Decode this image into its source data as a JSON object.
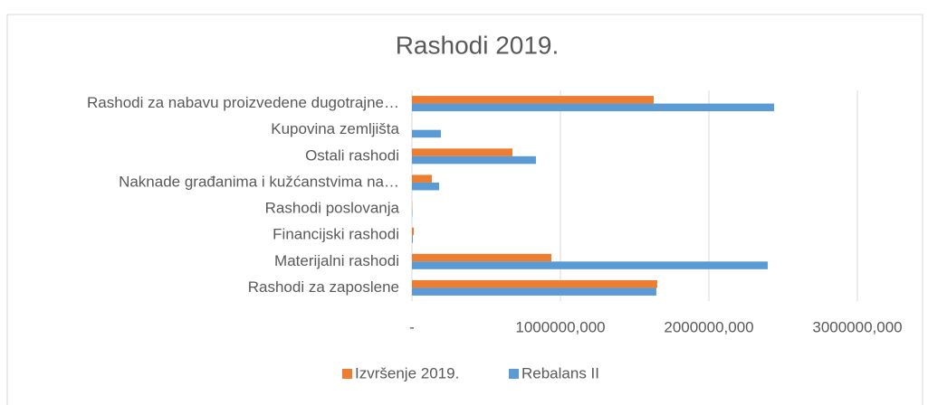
{
  "chart_data": {
    "type": "hbar",
    "title": "Rashodi 2019.",
    "categories": [
      "Rashodi za zaposlene",
      "Materijalni rashodi",
      "Financijski rashodi",
      "Rashodi poslovanja",
      "Naknade građanima i kužćanstvima na…",
      "Ostali rashodi",
      "Kupovina zemljišta",
      "Rashodi za nabavu proizvedene dugotrajne…"
    ],
    "series": [
      {
        "name": "Izvršenje 2019.",
        "color": "#ed7d31",
        "values": [
          1652000,
          939000,
          12000,
          2000,
          134000,
          677000,
          0,
          1628000
        ]
      },
      {
        "name": "Rebalans II",
        "color": "#5b9bd5",
        "values": [
          1646000,
          2396000,
          6000,
          3000,
          183000,
          835000,
          195000,
          2439000
        ]
      }
    ],
    "xlim": [
      0,
      3000000
    ],
    "xticks": [
      {
        "value": 0,
        "label": "-"
      },
      {
        "value": 1000000,
        "label": "1000000,000"
      },
      {
        "value": 2000000,
        "label": "2000000,000"
      },
      {
        "value": 3000000,
        "label": "3000000,000"
      }
    ],
    "grid": true,
    "legend": "bottom"
  }
}
